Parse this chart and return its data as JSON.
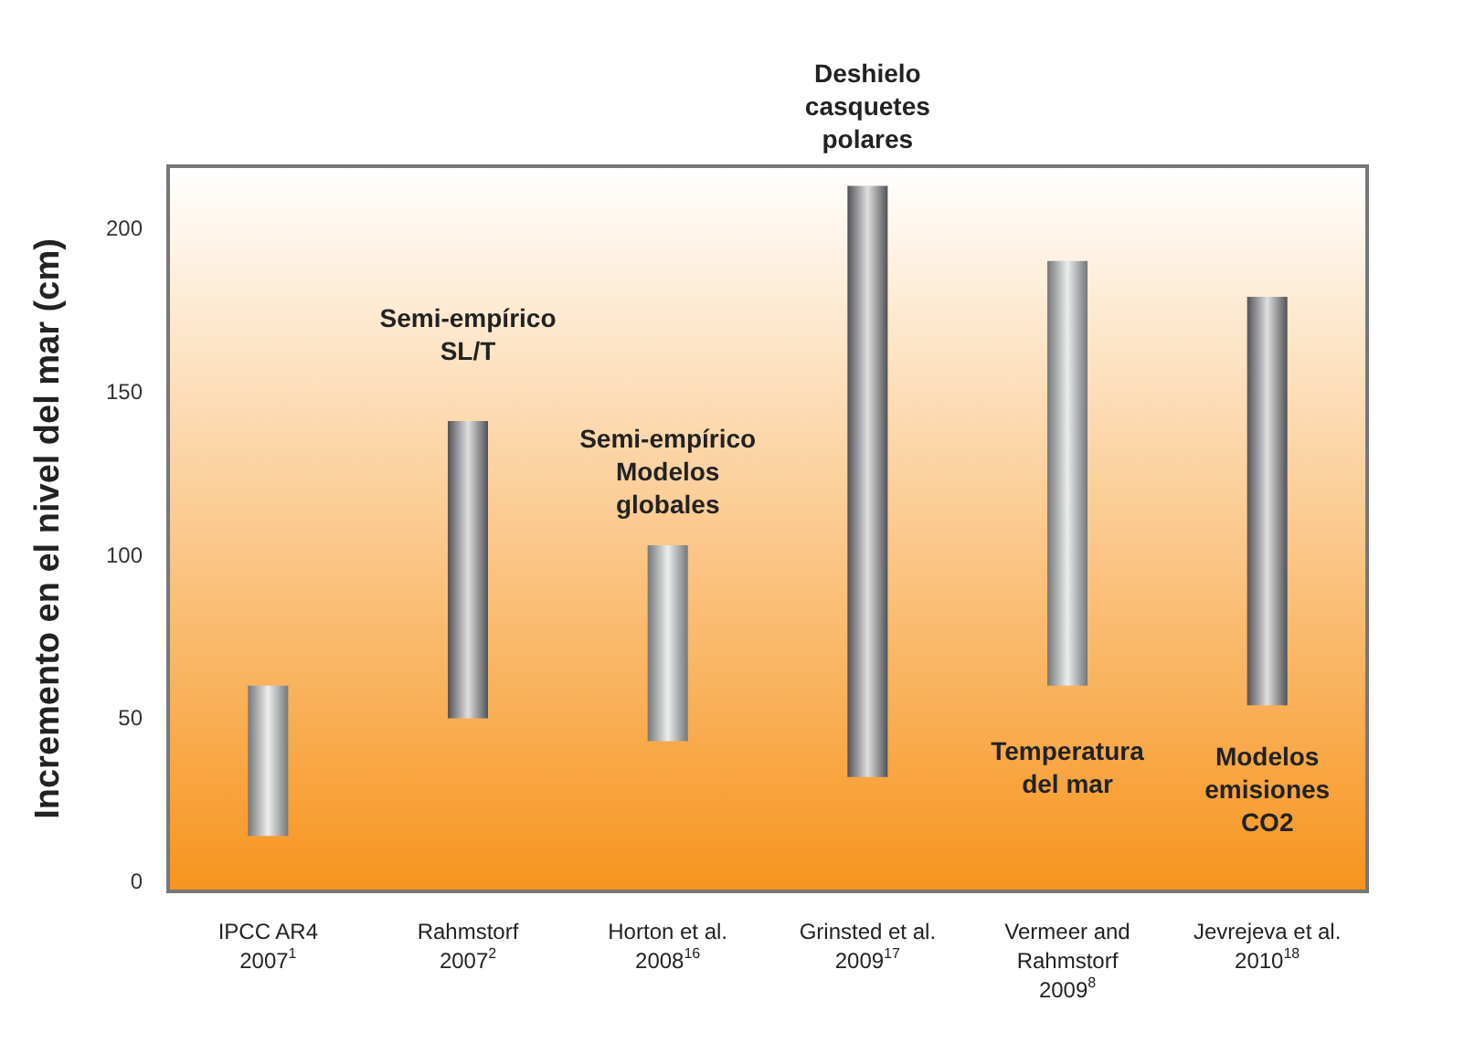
{
  "chart_data": {
    "type": "bar",
    "ylabel": "Incremento en el nivel del mar (cm)",
    "categories": [
      "IPCC AR4\n2007$^{1}$",
      "Rahmstorf\n2007$^{2}$",
      "Horton et al.\n2008$^{16}$",
      "Grinsted et al.\n2009$^{17}$",
      "Vermeer and\nRahmstorf\n2009$^{8}$",
      "Jevrejeva et al.\n2010$^{18}$"
    ],
    "base": [
      14,
      50,
      43,
      32,
      60,
      54
    ],
    "values": [
      46,
      91,
      60,
      181,
      130,
      125
    ],
    "colors": [
      "#b4b5b8",
      "#7d7e82",
      "#b4b5b8",
      "#7d7e82",
      "#b4b5b8",
      "#7d7e82"
    ],
    "ylim": [
      -3,
      219
    ],
    "yticks": [
      0,
      50,
      100,
      150,
      200
    ],
    "grid": false,
    "annotations": [
      "Semi-empírico\nSL/T",
      "Semi-empírico\nModelos\nglobales",
      "Deshielo\ncasquetes\npolares",
      "Temperatura\ndel mar",
      "Modelos\nemisiones\nCO2"
    ]
  }
}
